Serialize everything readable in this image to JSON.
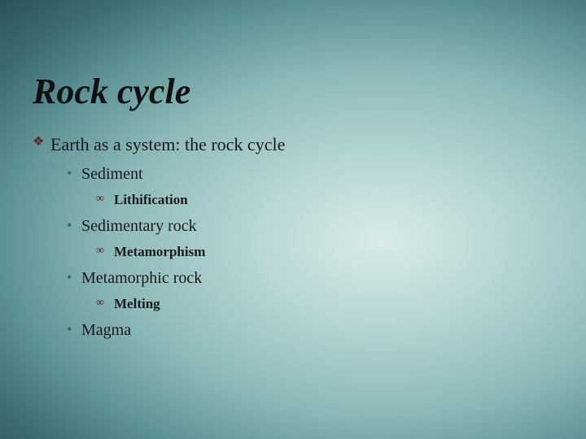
{
  "slide": {
    "title": "Rock cycle",
    "background": {
      "gradient_center": "#d9ebe8",
      "gradient_outer": "#2a5258",
      "type": "radial"
    },
    "title_style": {
      "fontsize_pt": 44,
      "bold": true,
      "italic": true,
      "color": "#111111"
    },
    "bullets": {
      "L1_marker": "❖",
      "L1_marker_color": "#6a1f1f",
      "L1_fontsize": 22,
      "L2_marker": "•",
      "L2_marker_color": "#2a6b6b",
      "L2_fontsize": 20,
      "L3_marker": "∞",
      "L3_marker_color": "#5a0f0f",
      "L3_fontsize": 17,
      "L3_bold": true
    },
    "items": {
      "l1_0": "Earth as a system: the rock cycle",
      "l2_0": "Sediment",
      "l3_0": "Lithification",
      "l2_1": "Sedimentary rock",
      "l3_1": "Metamorphism",
      "l2_2": "Metamorphic rock",
      "l3_2": "Melting",
      "l2_3": "Magma"
    }
  }
}
